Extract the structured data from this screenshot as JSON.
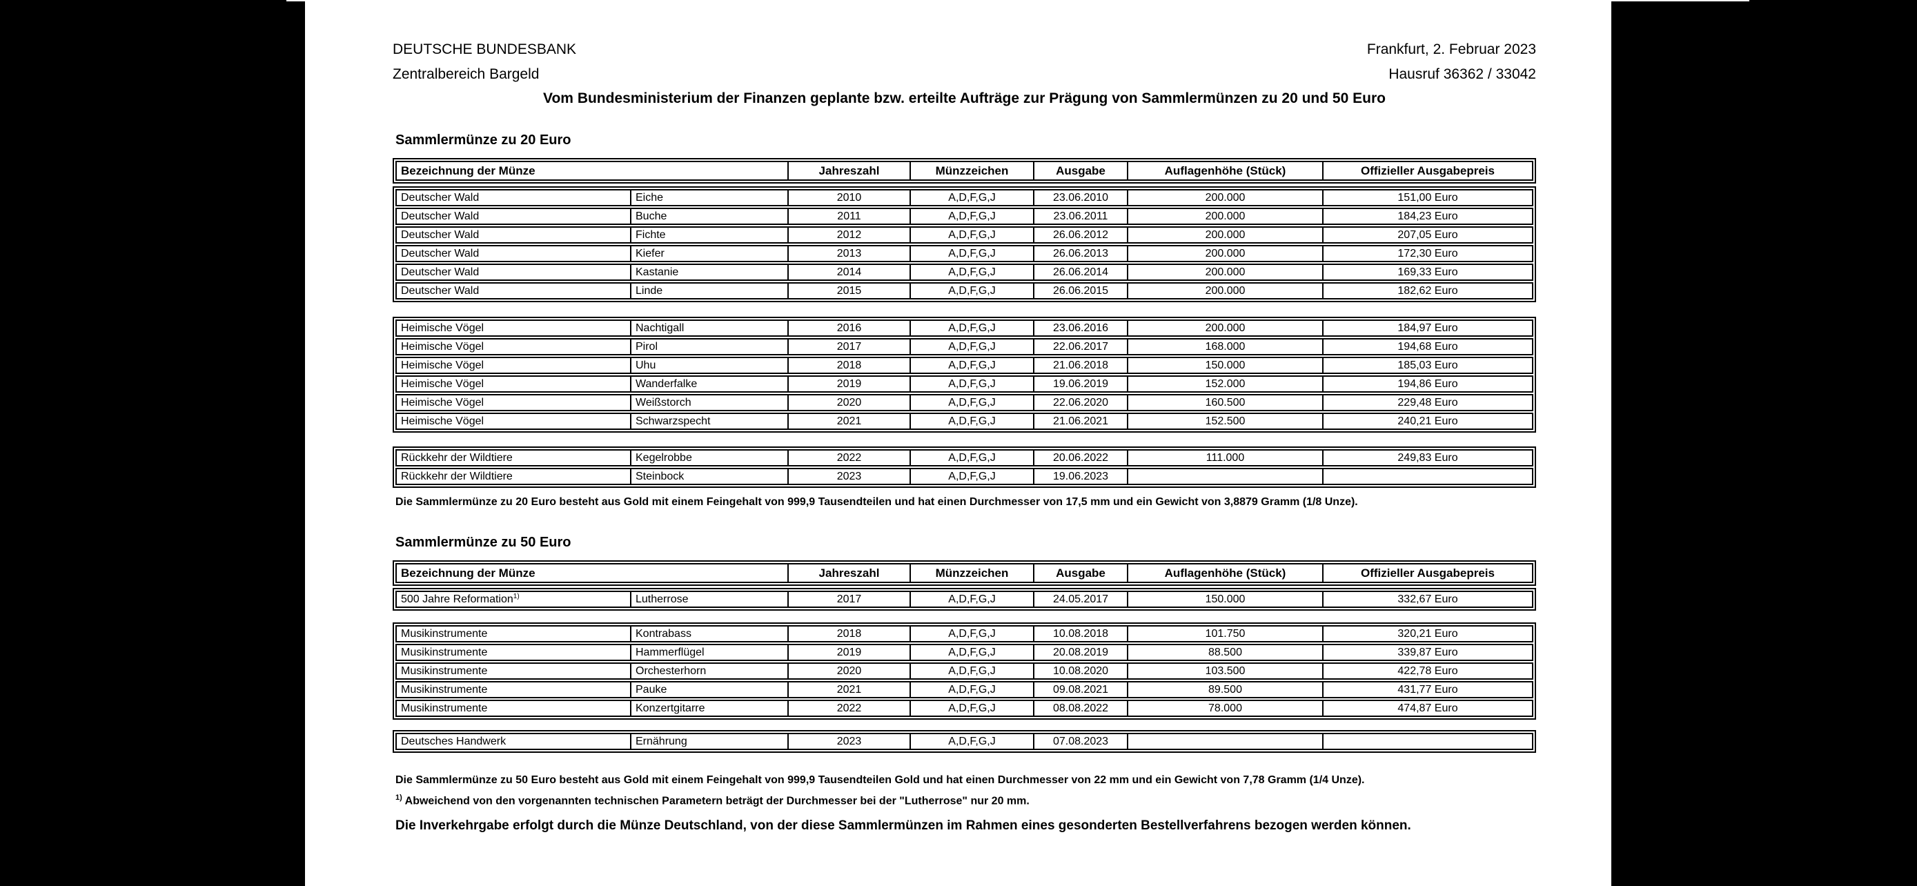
{
  "header": {
    "org_line1": "DEUTSCHE BUNDESBANK",
    "org_line2": "Zentralbereich Bargeld",
    "date_line": "Frankfurt, 2. Februar 2023",
    "phone_line": "Hausruf 36362 / 33042",
    "title": "Vom Bundesministerium der Finanzen geplante bzw. erteilte Aufträge zur Prägung von Sammlermünzen zu 20 und 50 Euro"
  },
  "columns": {
    "name": "Bezeichnung der Münze",
    "year": "Jahreszahl",
    "mark": "Münzzeichen",
    "issue": "Ausgabe",
    "mintage": "Auflagenhöhe (Stück)",
    "price": "Offizieller Ausgabepreis"
  },
  "section20": {
    "heading": "Sammlermünze zu 20 Euro",
    "footnote": "Die Sammlermünze zu 20 Euro besteht aus Gold mit einem Feingehalt von 999,9 Tausendteilen und hat einen Durchmesser von 17,5 mm und ein Gewicht von 3,8879 Gramm (1/8 Unze).",
    "groups": {
      "wald": [
        {
          "series": "Deutscher Wald",
          "motif": "Eiche",
          "year": "2010",
          "mark": "A,D,F,G,J",
          "issue": "23.06.2010",
          "mintage": "200.000",
          "price": "151,00 Euro"
        },
        {
          "series": "Deutscher Wald",
          "motif": "Buche",
          "year": "2011",
          "mark": "A,D,F,G,J",
          "issue": "23.06.2011",
          "mintage": "200.000",
          "price": "184,23 Euro"
        },
        {
          "series": "Deutscher Wald",
          "motif": "Fichte",
          "year": "2012",
          "mark": "A,D,F,G,J",
          "issue": "26.06.2012",
          "mintage": "200.000",
          "price": "207,05 Euro"
        },
        {
          "series": "Deutscher Wald",
          "motif": "Kiefer",
          "year": "2013",
          "mark": "A,D,F,G,J",
          "issue": "26.06.2013",
          "mintage": "200.000",
          "price": "172,30 Euro"
        },
        {
          "series": "Deutscher Wald",
          "motif": "Kastanie",
          "year": "2014",
          "mark": "A,D,F,G,J",
          "issue": "26.06.2014",
          "mintage": "200.000",
          "price": "169,33 Euro"
        },
        {
          "series": "Deutscher Wald",
          "motif": "Linde",
          "year": "2015",
          "mark": "A,D,F,G,J",
          "issue": "26.06.2015",
          "mintage": "200.000",
          "price": "182,62 Euro"
        }
      ],
      "voegel": [
        {
          "series": "Heimische Vögel",
          "motif": "Nachtigall",
          "year": "2016",
          "mark": "A,D,F,G,J",
          "issue": "23.06.2016",
          "mintage": "200.000",
          "price": "184,97 Euro"
        },
        {
          "series": "Heimische Vögel",
          "motif": "Pirol",
          "year": "2017",
          "mark": "A,D,F,G,J",
          "issue": "22.06.2017",
          "mintage": "168.000",
          "price": "194,68 Euro"
        },
        {
          "series": "Heimische Vögel",
          "motif": "Uhu",
          "year": "2018",
          "mark": "A,D,F,G,J",
          "issue": "21.06.2018",
          "mintage": "150.000",
          "price": "185,03 Euro"
        },
        {
          "series": "Heimische Vögel",
          "motif": "Wanderfalke",
          "year": "2019",
          "mark": "A,D,F,G,J",
          "issue": "19.06.2019",
          "mintage": "152.000",
          "price": "194,86 Euro"
        },
        {
          "series": "Heimische Vögel",
          "motif": "Weißstorch",
          "year": "2020",
          "mark": "A,D,F,G,J",
          "issue": "22.06.2020",
          "mintage": "160.500",
          "price": "229,48 Euro"
        },
        {
          "series": "Heimische Vögel",
          "motif": "Schwarzspecht",
          "year": "2021",
          "mark": "A,D,F,G,J",
          "issue": "21.06.2021",
          "mintage": "152.500",
          "price": "240,21 Euro"
        }
      ],
      "wildtiere": [
        {
          "series": "Rückkehr der Wildtiere",
          "motif": "Kegelrobbe",
          "year": "2022",
          "mark": "A,D,F,G,J",
          "issue": "20.06.2022",
          "mintage": "111.000",
          "price": "249,83 Euro"
        },
        {
          "series": "Rückkehr der Wildtiere",
          "motif": "Steinbock",
          "year": "2023",
          "mark": "A,D,F,G,J",
          "issue": "19.06.2023",
          "mintage": "",
          "price": ""
        }
      ]
    }
  },
  "section50": {
    "heading": "Sammlermünze zu 50 Euro",
    "footnote": "Die Sammlermünze zu 50 Euro besteht aus Gold mit einem Feingehalt von 999,9 Tausendteilen Gold und hat einen Durchmesser von 22 mm und ein Gewicht von 7,78 Gramm (1/4 Unze).",
    "footnote1_marker": "1)",
    "footnote1": "Abweichend von den vorgenannten technischen Parametern beträgt der Durchmesser bei der \"Lutherrose\" nur 20 mm.",
    "groups": {
      "reformation": [
        {
          "series": "500 Jahre Reformation",
          "sup": "1)",
          "motif": "Lutherrose",
          "year": "2017",
          "mark": "A,D,F,G,J",
          "issue": "24.05.2017",
          "mintage": "150.000",
          "price": "332,67 Euro"
        }
      ],
      "musik": [
        {
          "series": "Musikinstrumente",
          "motif": "Kontrabass",
          "year": "2018",
          "mark": "A,D,F,G,J",
          "issue": "10.08.2018",
          "mintage": "101.750",
          "price": "320,21 Euro"
        },
        {
          "series": "Musikinstrumente",
          "motif": "Hammerflügel",
          "year": "2019",
          "mark": "A,D,F,G,J",
          "issue": "20.08.2019",
          "mintage": "88.500",
          "price": "339,87 Euro"
        },
        {
          "series": "Musikinstrumente",
          "motif": "Orchesterhorn",
          "year": "2020",
          "mark": "A,D,F,G,J",
          "issue": "10.08.2020",
          "mintage": "103.500",
          "price": "422,78 Euro"
        },
        {
          "series": "Musikinstrumente",
          "motif": "Pauke",
          "year": "2021",
          "mark": "A,D,F,G,J",
          "issue": "09.08.2021",
          "mintage": "89.500",
          "price": "431,77 Euro"
        },
        {
          "series": "Musikinstrumente",
          "motif": "Konzertgitarre",
          "year": "2022",
          "mark": "A,D,F,G,J",
          "issue": "08.08.2022",
          "mintage": "78.000",
          "price": "474,87 Euro"
        }
      ],
      "handwerk": [
        {
          "series": "Deutsches Handwerk",
          "motif": "Ernährung",
          "year": "2023",
          "mark": "A,D,F,G,J",
          "issue": "07.08.2023",
          "mintage": "",
          "price": ""
        }
      ]
    }
  },
  "closing": "Die Inverkehrgabe erfolgt durch die Münze Deutschland, von der diese Sammlermünzen im Rahmen eines gesonderten Bestellverfahrens bezogen werden können."
}
